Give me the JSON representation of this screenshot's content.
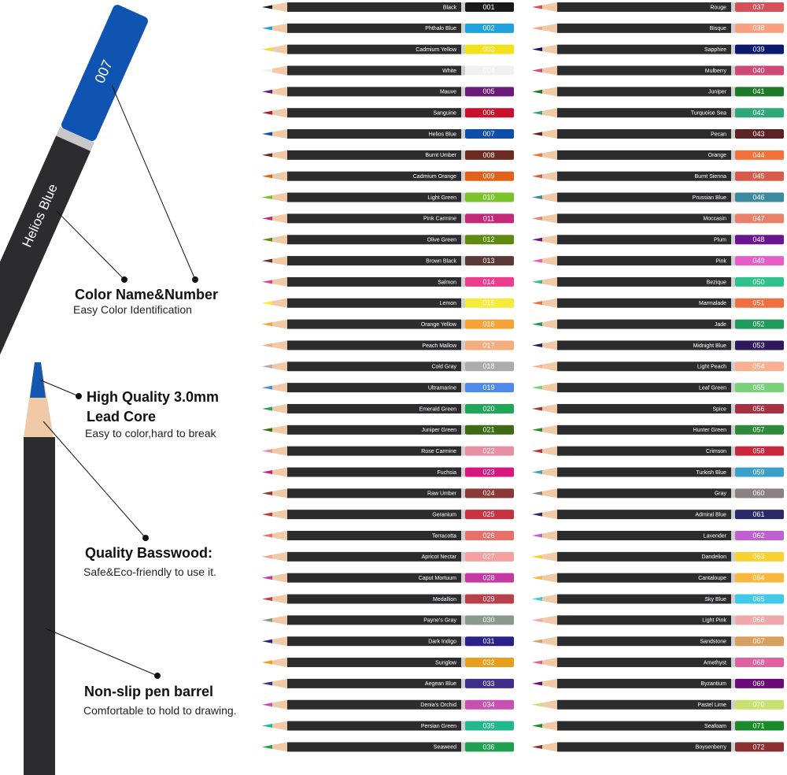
{
  "hero": {
    "number": "007",
    "name": "Helios Blue"
  },
  "features": [
    {
      "title_lines": [
        "Color Name&Number"
      ],
      "subtitle": "Easy Color Identification"
    },
    {
      "title_lines": [
        "High Quality  3.0mm",
        "Lead Core"
      ],
      "subtitle": "Easy to color,hard to break"
    },
    {
      "title_lines": [
        "Quality Basswood:"
      ],
      "subtitle": "Safe&Eco-friendly to use it."
    },
    {
      "title_lines": [
        "Non-slip pen barrel"
      ],
      "subtitle": "Comfortable to hold to drawing."
    }
  ],
  "pencils": [
    {
      "name": "Black",
      "number": "001",
      "color": "#1a1a1a"
    },
    {
      "name": "Phthalo Blue",
      "number": "002",
      "color": "#1fa3dc"
    },
    {
      "name": "Cadmium Yellow",
      "number": "003",
      "color": "#f2e21c"
    },
    {
      "name": "White",
      "number": "004",
      "color": "#f1f1f1"
    },
    {
      "name": "Mauve",
      "number": "005",
      "color": "#6a1a78"
    },
    {
      "name": "Sanguine",
      "number": "006",
      "color": "#c8102e"
    },
    {
      "name": "Helios Blue",
      "number": "007",
      "color": "#0d4fa8"
    },
    {
      "name": "Burnt Umber",
      "number": "008",
      "color": "#6b2b1e"
    },
    {
      "name": "Cadmium Orange",
      "number": "009",
      "color": "#e2621c"
    },
    {
      "name": "Light Green",
      "number": "010",
      "color": "#7cc22a"
    },
    {
      "name": "Pink Carmine",
      "number": "011",
      "color": "#c22a78"
    },
    {
      "name": "Olive Green",
      "number": "012",
      "color": "#5f8a12"
    },
    {
      "name": "Brown Black",
      "number": "013",
      "color": "#5a3a36"
    },
    {
      "name": "Salmon",
      "number": "014",
      "color": "#ea3d8c"
    },
    {
      "name": "Lemon",
      "number": "015",
      "color": "#f6ea3a"
    },
    {
      "name": "Orange Yellow",
      "number": "016",
      "color": "#f8a33a"
    },
    {
      "name": "Peach Mallow",
      "number": "017",
      "color": "#f4ad7e"
    },
    {
      "name": "Cold Gray",
      "number": "018",
      "color": "#acacac"
    },
    {
      "name": "Ultramarine",
      "number": "019",
      "color": "#4f8ae8"
    },
    {
      "name": "Emerald Green",
      "number": "020",
      "color": "#1ca858"
    },
    {
      "name": "Juniper Green",
      "number": "021",
      "color": "#3d6a12"
    },
    {
      "name": "Rose Carmine",
      "number": "022",
      "color": "#e590a0"
    },
    {
      "name": "Fuchsia",
      "number": "023",
      "color": "#d8177e"
    },
    {
      "name": "Raw Umber",
      "number": "024",
      "color": "#8a3a36"
    },
    {
      "name": "Geranium",
      "number": "025",
      "color": "#c8323e"
    },
    {
      "name": "Terracotta",
      "number": "026",
      "color": "#e8706a"
    },
    {
      "name": "Apricot Nectar",
      "number": "027",
      "color": "#f6a0a0"
    },
    {
      "name": "Caput Mortuum",
      "number": "028",
      "color": "#c43aa0"
    },
    {
      "name": "Medallion",
      "number": "029",
      "color": "#b8404a"
    },
    {
      "name": "Payne's Gray",
      "number": "030",
      "color": "#8a9a8a"
    },
    {
      "name": "Dark Indigo",
      "number": "031",
      "color": "#2a2088"
    },
    {
      "name": "Sunglow",
      "number": "032",
      "color": "#e8a01c"
    },
    {
      "name": "Aegean Blue",
      "number": "033",
      "color": "#3e2e8a"
    },
    {
      "name": "Denia's Orchid",
      "number": "034",
      "color": "#c850b0"
    },
    {
      "name": "Persian Green",
      "number": "035",
      "color": "#22b88e"
    },
    {
      "name": "Seaweed",
      "number": "036",
      "color": "#20a050"
    },
    {
      "name": "Rouge",
      "number": "037",
      "color": "#d6505a"
    },
    {
      "name": "Bisque",
      "number": "038",
      "color": "#f8a080"
    },
    {
      "name": "Sapphire",
      "number": "039",
      "color": "#0c1a6e"
    },
    {
      "name": "Mulberry",
      "number": "040",
      "color": "#d04a78"
    },
    {
      "name": "Juniper",
      "number": "041",
      "color": "#1e7a2a"
    },
    {
      "name": "Turquoise Sea",
      "number": "042",
      "color": "#2ea878"
    },
    {
      "name": "Pecan",
      "number": "043",
      "color": "#5a2426"
    },
    {
      "name": "Orange",
      "number": "044",
      "color": "#f2703a"
    },
    {
      "name": "Burnt Sienna",
      "number": "045",
      "color": "#d85a4a"
    },
    {
      "name": "Prussian Blue",
      "number": "046",
      "color": "#3c8aa0"
    },
    {
      "name": "Moccasin",
      "number": "047",
      "color": "#e8806a"
    },
    {
      "name": "Plum",
      "number": "048",
      "color": "#6a1490"
    },
    {
      "name": "Pink",
      "number": "049",
      "color": "#e85cc8"
    },
    {
      "name": "Bezique",
      "number": "050",
      "color": "#30c08a"
    },
    {
      "name": "Marmalade",
      "number": "051",
      "color": "#ee7040"
    },
    {
      "name": "Jade",
      "number": "052",
      "color": "#1e9a5a"
    },
    {
      "name": "Midnight Blue",
      "number": "053",
      "color": "#2e1a5a"
    },
    {
      "name": "Light Peach",
      "number": "054",
      "color": "#f8b090"
    },
    {
      "name": "Leaf Green",
      "number": "055",
      "color": "#7ad07a"
    },
    {
      "name": "Spice",
      "number": "056",
      "color": "#a83040"
    },
    {
      "name": "Hunter Green",
      "number": "057",
      "color": "#2e8a3a"
    },
    {
      "name": "Crimson",
      "number": "058",
      "color": "#c8283a"
    },
    {
      "name": "Turkish Blue",
      "number": "059",
      "color": "#3aa0c8"
    },
    {
      "name": "Gray",
      "number": "060",
      "color": "#8a8080"
    },
    {
      "name": "Admiral Blue",
      "number": "061",
      "color": "#2a2a6a"
    },
    {
      "name": "Lavender",
      "number": "062",
      "color": "#c060d0"
    },
    {
      "name": "Dandelion",
      "number": "063",
      "color": "#f8d030"
    },
    {
      "name": "Cantaloupe",
      "number": "064",
      "color": "#f8b840"
    },
    {
      "name": "Sky Blue",
      "number": "065",
      "color": "#40c8e8"
    },
    {
      "name": "Light Pink",
      "number": "066",
      "color": "#f0a8a8"
    },
    {
      "name": "Sandstone",
      "number": "067",
      "color": "#d8a060"
    },
    {
      "name": "Amethyst",
      "number": "068",
      "color": "#e060a0"
    },
    {
      "name": "Byzantium",
      "number": "069",
      "color": "#6a0a78"
    },
    {
      "name": "Pastel Lime",
      "number": "070",
      "color": "#c8e070"
    },
    {
      "name": "Seafoam",
      "number": "071",
      "color": "#1a8a2a"
    },
    {
      "name": "Boysenberry",
      "number": "072",
      "color": "#8a3030"
    }
  ]
}
